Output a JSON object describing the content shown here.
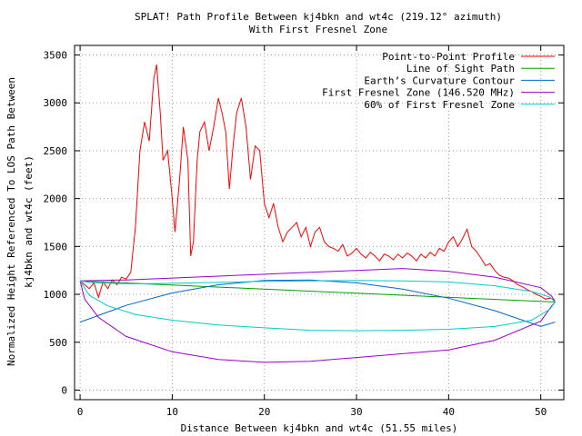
{
  "chart_data": {
    "type": "line",
    "title": "SPLAT! Path Profile Between kj4bkn and wt4c (219.12° azimuth)",
    "subtitle": "With First Fresnel Zone",
    "xlabel": "Distance Between kj4bkn and wt4c (51.55 miles)",
    "ylabel_lines": [
      "Normalized Height Referenced To LOS Path Between",
      "kj4bkn and wt4c (feet)"
    ],
    "xlim": [
      -0.6,
      52.5
    ],
    "ylim": [
      -100,
      3600
    ],
    "x_ticks": [
      0,
      10,
      20,
      30,
      40,
      50
    ],
    "y_ticks": [
      0,
      500,
      1000,
      1500,
      2000,
      2500,
      3000,
      3500
    ],
    "grid": true,
    "legend_position": "top-right",
    "series": [
      {
        "name": "Point-to-Point Profile",
        "color": "#ff0000",
        "x": [
          0,
          0.5,
          1,
          1.5,
          2,
          2.5,
          3,
          3.5,
          4,
          4.5,
          5,
          5.5,
          6,
          6.5,
          7,
          7.5,
          8,
          8.3,
          8.7,
          9,
          9.5,
          10,
          10.3,
          10.8,
          11.2,
          11.7,
          12,
          12.3,
          12.7,
          13,
          13.5,
          14,
          14.5,
          15,
          15.4,
          15.8,
          16.2,
          16.6,
          17,
          17.5,
          18,
          18.5,
          19,
          19.5,
          20,
          20.5,
          21,
          21.5,
          22,
          22.5,
          23,
          23.5,
          24,
          24.5,
          25,
          25.5,
          26,
          26.5,
          27,
          27.5,
          28,
          28.5,
          29,
          29.5,
          30,
          30.5,
          31,
          31.5,
          32,
          32.5,
          33,
          33.5,
          34,
          34.5,
          35,
          35.5,
          36,
          36.5,
          37,
          37.5,
          38,
          38.5,
          39,
          39.5,
          40,
          40.5,
          41,
          41.5,
          42,
          42.5,
          43,
          43.5,
          44,
          44.5,
          45,
          45.5,
          46,
          46.5,
          47,
          47.5,
          48,
          48.5,
          49,
          49.5,
          50,
          50.5,
          51,
          51.55
        ],
        "y": [
          1140,
          1100,
          1060,
          1120,
          970,
          1130,
          1060,
          1150,
          1100,
          1180,
          1160,
          1230,
          1700,
          2500,
          2800,
          2600,
          3250,
          3400,
          2900,
          2400,
          2500,
          2000,
          1650,
          2200,
          2750,
          2400,
          1400,
          1550,
          2400,
          2700,
          2800,
          2500,
          2750,
          3050,
          2900,
          2700,
          2100,
          2550,
          2900,
          3050,
          2750,
          2200,
          2550,
          2500,
          1950,
          1800,
          1950,
          1700,
          1550,
          1650,
          1700,
          1750,
          1600,
          1700,
          1500,
          1650,
          1700,
          1550,
          1500,
          1480,
          1450,
          1520,
          1400,
          1430,
          1480,
          1420,
          1380,
          1440,
          1400,
          1350,
          1420,
          1400,
          1360,
          1420,
          1380,
          1430,
          1400,
          1350,
          1420,
          1380,
          1440,
          1400,
          1480,
          1450,
          1550,
          1600,
          1500,
          1580,
          1680,
          1500,
          1450,
          1380,
          1300,
          1320,
          1250,
          1200,
          1180,
          1170,
          1140,
          1100,
          1080,
          1050,
          1030,
          1000,
          980,
          950,
          960,
          940
        ]
      },
      {
        "name": "Line of Sight Path",
        "color": "#00a000",
        "x": [
          0,
          51.55
        ],
        "y": [
          1140,
          920
        ]
      },
      {
        "name": "Earth’s Curvature Contour",
        "color": "#0066cc",
        "x": [
          0,
          5,
          10,
          15,
          20,
          25,
          30,
          35,
          40,
          45,
          50,
          51.55
        ],
        "y": [
          710,
          885,
          1015,
          1100,
          1145,
          1150,
          1120,
          1055,
          960,
          830,
          665,
          710
        ]
      },
      {
        "name": "First Fresnel Zone (146.520 MHz)",
        "color": "#9900cc",
        "x": [
          0,
          0.5,
          2,
          5,
          10,
          15,
          20,
          25,
          30,
          35,
          40,
          45,
          50,
          51.2,
          51.55,
          51.2,
          50,
          45,
          40,
          35,
          30,
          25,
          20,
          15,
          10,
          5,
          2,
          0.5,
          0
        ],
        "y": [
          1140,
          950,
          760,
          560,
          400,
          320,
          290,
          300,
          340,
          380,
          420,
          520,
          720,
          880,
          920,
          980,
          1070,
          1180,
          1240,
          1270,
          1250,
          1230,
          1210,
          1190,
          1170,
          1150,
          1145,
          1142,
          1140
        ]
      },
      {
        "name": "60% of First Fresnel Zone",
        "color": "#00cccc",
        "x": [
          0,
          1,
          3,
          6,
          10,
          15,
          20,
          25,
          30,
          35,
          40,
          45,
          49,
          51,
          51.55,
          51,
          49,
          45,
          40,
          35,
          30,
          25,
          20,
          15,
          10,
          6,
          3,
          1,
          0
        ],
        "y": [
          1140,
          990,
          880,
          790,
          730,
          680,
          650,
          625,
          620,
          625,
          635,
          665,
          730,
          845,
          920,
          970,
          1030,
          1090,
          1130,
          1140,
          1145,
          1140,
          1135,
          1125,
          1115,
          1110,
          1115,
          1125,
          1140
        ]
      }
    ]
  }
}
